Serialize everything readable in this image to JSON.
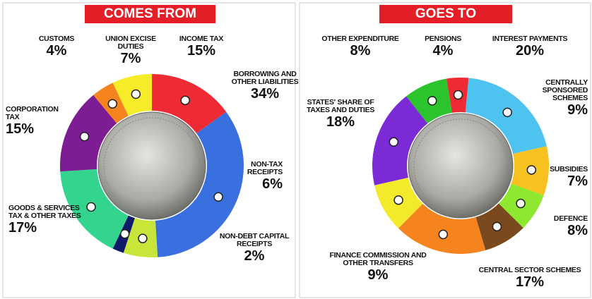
{
  "chart_data": [
    {
      "type": "pie",
      "title": "COMES FROM",
      "categories": [
        "INCOME TAX",
        "BORROWING AND OTHER LIABILITIES",
        "NON-TAX RECEIPTS",
        "NON-DEBT CAPITAL RECEIPTS",
        "GOODS & SERVICES TAX & OTHER TAXES",
        "CORPORATION TAX",
        "CUSTOMS",
        "UNION EXCISE DUTIES"
      ],
      "values": [
        15,
        34,
        6,
        2,
        17,
        15,
        4,
        7
      ],
      "value_labels": [
        "15%",
        "34%",
        "6%",
        "2%",
        "17%",
        "15%",
        "4%",
        "7%"
      ],
      "colors": [
        "#ee2b34",
        "#3a6fe0",
        "#c8e63a",
        "#101a6a",
        "#33d48e",
        "#7e1c94",
        "#f5841f",
        "#f7ec2a"
      ]
    },
    {
      "type": "pie",
      "title": "GOES TO",
      "categories": [
        "OTHER EXPENDITURE",
        "PENSIONS",
        "INTEREST PAYMENTS",
        "CENTRALLY SPONSORED SCHEMES",
        "SUBSIDIES",
        "DEFENCE",
        "CENTRAL SECTOR SCHEMES",
        "FINANCE COMMISSION AND OTHER TRANSFERS",
        "STATES' SHARE OF TAXES AND DUTIES"
      ],
      "values": [
        8,
        4,
        20,
        9,
        7,
        8,
        17,
        9,
        18
      ],
      "value_labels": [
        "8%",
        "4%",
        "20%",
        "9%",
        "7%",
        "8%",
        "17%",
        "9%",
        "18%"
      ],
      "colors": [
        "#2cc42c",
        "#ee2b34",
        "#4fc3ef",
        "#f7c21f",
        "#8fe830",
        "#7a4a1e",
        "#f5841f",
        "#f2ea2a",
        "#7a2bd6"
      ]
    }
  ]
}
